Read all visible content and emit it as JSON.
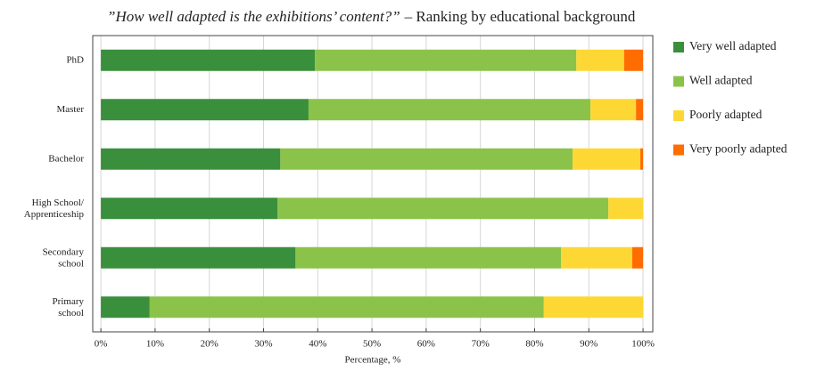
{
  "chart_data": {
    "type": "stacked-bar-horizontal",
    "title": "”How well adapted is the exhibitions’ content?”",
    "subtitle": "– Ranking by educational background",
    "x_label": "Percentage, %",
    "categories": [
      "PhD",
      "Master",
      "Bachelor",
      "High School/\nApprenticeship",
      "Secondary\nschool",
      "Primary\nschool"
    ],
    "series": [
      {
        "name": "Very well adapted",
        "color": "#3a8f3c",
        "values": [
          39.5,
          38.3,
          33.1,
          32.6,
          35.9,
          9.0
        ]
      },
      {
        "name": "Well adapted",
        "color": "#8bc34a",
        "values": [
          48.2,
          52.0,
          53.9,
          61.0,
          49.0,
          72.7
        ]
      },
      {
        "name": "Poorly adapted",
        "color": "#fdd835",
        "values": [
          8.8,
          8.4,
          12.5,
          6.4,
          13.1,
          18.3
        ]
      },
      {
        "name": "Very poorly adapted",
        "color": "#ff6d00",
        "values": [
          3.5,
          1.3,
          0.5,
          0,
          2.0,
          0
        ]
      }
    ],
    "xlim": [
      -1.5,
      101.8
    ],
    "xticks": [
      {
        "value": 0,
        "label": "0%"
      },
      {
        "value": 10,
        "label": "10%"
      },
      {
        "value": 20,
        "label": "20%"
      },
      {
        "value": 30,
        "label": "30%"
      },
      {
        "value": 40,
        "label": "40%"
      },
      {
        "value": 50,
        "label": "50%"
      },
      {
        "value": 60,
        "label": "60%"
      },
      {
        "value": 70,
        "label": "70%"
      },
      {
        "value": 80,
        "label": "80%"
      },
      {
        "value": 90,
        "label": "90%"
      },
      {
        "value": 100,
        "label": "100%"
      }
    ],
    "grid": true,
    "legend": "right"
  }
}
